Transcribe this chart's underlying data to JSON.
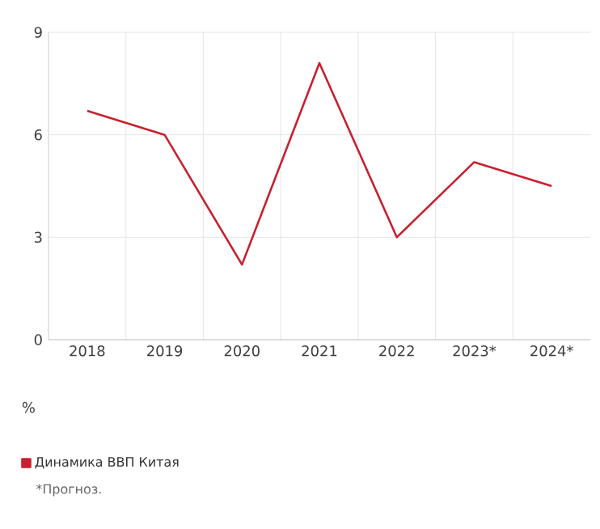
{
  "chart_data": {
    "type": "line",
    "ylabel": "%",
    "categories": [
      "2018",
      "2019",
      "2020",
      "2021",
      "2022",
      "2023*",
      "2024*"
    ],
    "series": [
      {
        "name": "Динамика ВВП Китая",
        "color": "#c8202f",
        "values": [
          6.7,
          6.0,
          2.2,
          8.1,
          3.0,
          5.2,
          4.5
        ]
      }
    ],
    "ylim": [
      0,
      9
    ],
    "yticks": [
      0,
      3,
      6,
      9
    ],
    "grid": true,
    "legend": "bottom",
    "marker": "none",
    "line_style": "solid",
    "annotations": [
      "*Прогноз."
    ]
  }
}
